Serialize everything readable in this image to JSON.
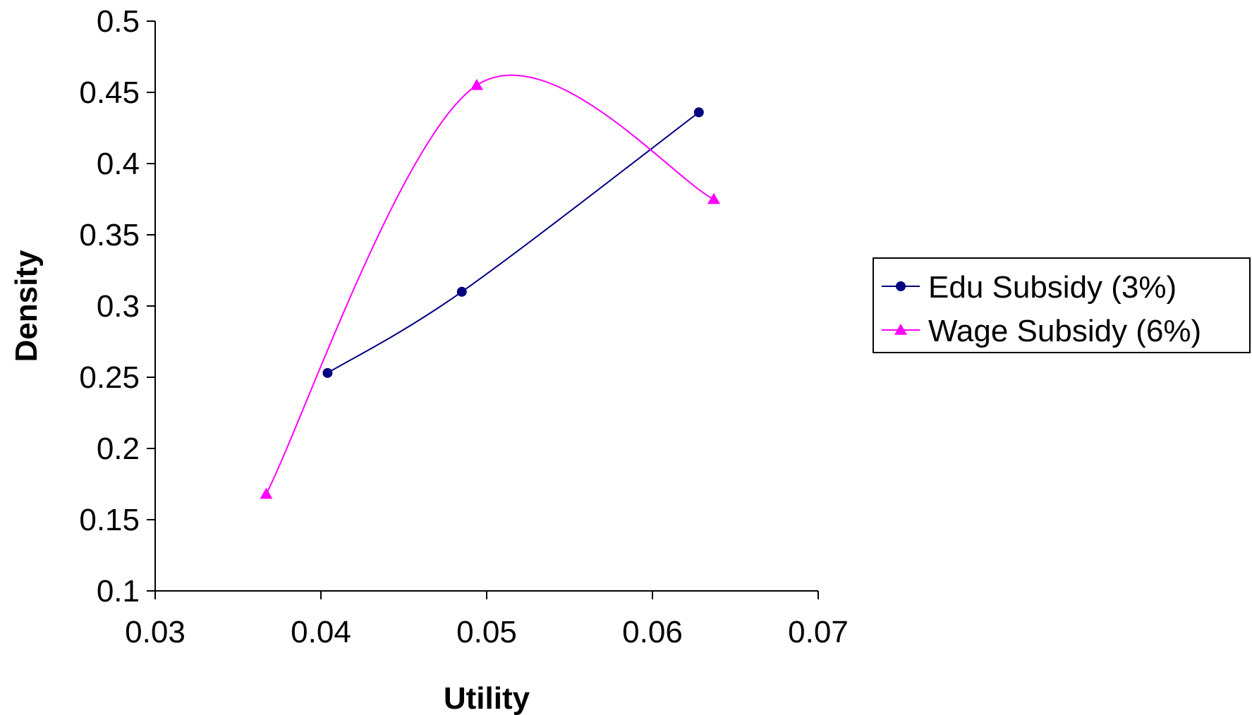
{
  "chart_data": {
    "type": "line",
    "xlabel": "Utility",
    "ylabel": "Density",
    "xlim": [
      0.03,
      0.07
    ],
    "ylim": [
      0.1,
      0.5
    ],
    "x_ticks": [
      "0.03",
      "0.04",
      "0.05",
      "0.06",
      "0.07"
    ],
    "y_ticks": [
      "0.1",
      "0.15",
      "0.2",
      "0.25",
      "0.3",
      "0.35",
      "0.4",
      "0.45",
      "0.5"
    ],
    "grid": false,
    "legend_position": "right",
    "series": [
      {
        "name": "Edu Subsidy (3%)",
        "color": "#000080",
        "marker": "circle",
        "smooth": true,
        "points": [
          [
            0.0404,
            0.253
          ],
          [
            0.0485,
            0.31
          ],
          [
            0.0628,
            0.436
          ]
        ]
      },
      {
        "name": "Wage Subsidy (6%)",
        "color": "#FF00FF",
        "marker": "triangle",
        "smooth": true,
        "points": [
          [
            0.0367,
            0.168
          ],
          [
            0.0494,
            0.455
          ],
          [
            0.0637,
            0.375
          ]
        ]
      }
    ]
  }
}
